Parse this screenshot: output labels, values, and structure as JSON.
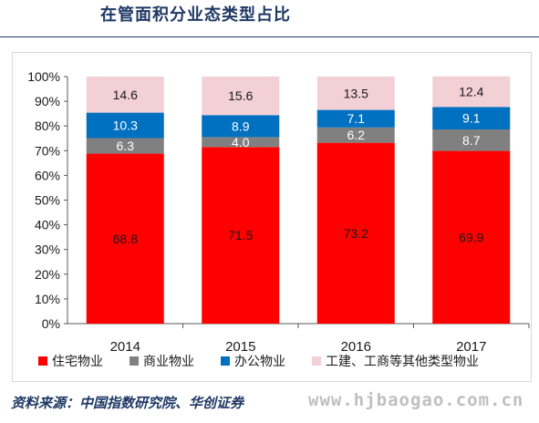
{
  "header": {
    "title": "在管面积分业态类型占比"
  },
  "footer": {
    "source": "资料来源：中国指数研究院、华创证券"
  },
  "watermark": "www.hjbaogao.com.cn",
  "chart_data": {
    "type": "bar",
    "stacked": true,
    "categories": [
      "2014",
      "2015",
      "2016",
      "2017"
    ],
    "series": [
      {
        "name": "住宅物业",
        "color": "#ff0000",
        "text_color": "#1a1a1a",
        "values": [
          68.8,
          71.5,
          73.2,
          69.9
        ]
      },
      {
        "name": "商业物业",
        "color": "#808080",
        "text_color": "#ffffff",
        "values": [
          6.3,
          4.0,
          6.2,
          8.7
        ]
      },
      {
        "name": "办公物业",
        "color": "#0070c0",
        "text_color": "#ffffff",
        "values": [
          10.3,
          8.9,
          7.1,
          9.1
        ]
      },
      {
        "name": "工建、工商等其他类型物业",
        "color": "#f2d0d6",
        "text_color": "#1a1a1a",
        "values": [
          14.6,
          15.6,
          13.5,
          12.4
        ]
      }
    ],
    "y_ticks": [
      "0%",
      "10%",
      "20%",
      "30%",
      "40%",
      "50%",
      "60%",
      "70%",
      "80%",
      "90%",
      "100%"
    ],
    "ylim": [
      0,
      100
    ],
    "grid": false,
    "legend_position": "bottom"
  }
}
